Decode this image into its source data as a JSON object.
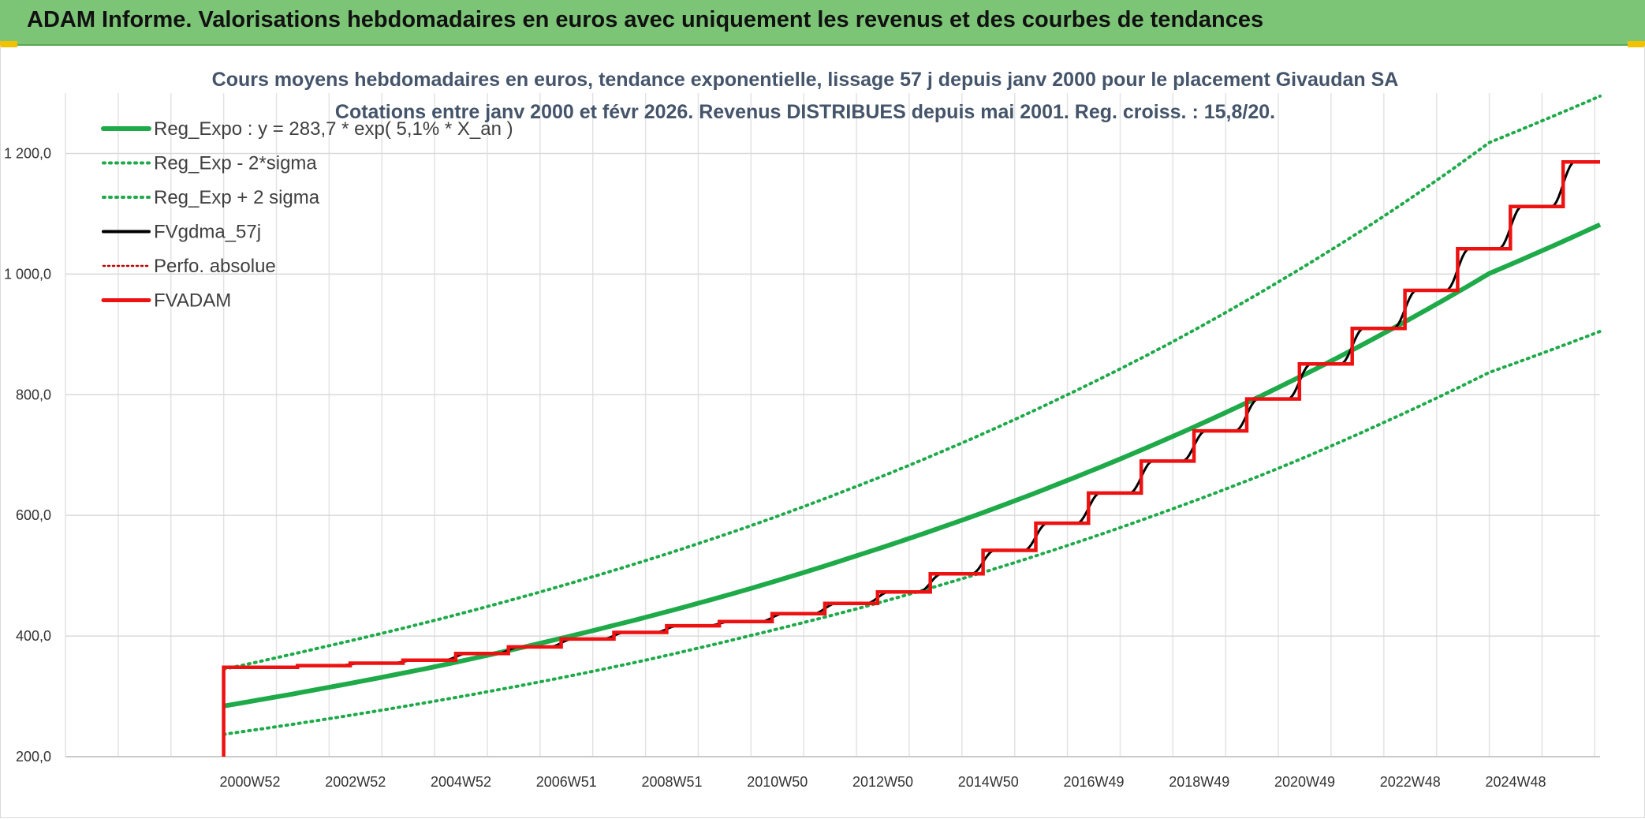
{
  "header": {
    "title": "ADAM Informe. Valorisations hebdomadaires en euros avec uniquement les revenus et des courbes de tendances"
  },
  "colors": {
    "banner": "#7cc576",
    "reg_expo": "#1faa4a",
    "sigma_bands": "#1faa4a",
    "fvgdma": "#000000",
    "perfo": "#c00000",
    "fvadam": "#ee1111"
  },
  "chart_data": {
    "type": "line",
    "title_line1": "Cours moyens hebdomadaires en euros, tendance exponentielle, lissage 57 j depuis janv 2000 pour le placement Givaudan SA",
    "title_line2": "Cotations entre janv 2000 et févr 2026. Revenus DISTRIBUES depuis mai 2001. Reg. croiss. : 15,8/20.",
    "x_tick_labels": [
      "2000W52",
      "2002W52",
      "2004W52",
      "2006W51",
      "2008W51",
      "2010W50",
      "2012W50",
      "2014W50",
      "2016W49",
      "2018W49",
      "2020W49",
      "2022W48",
      "2024W48"
    ],
    "x_range_years": [
      1997,
      2026.1
    ],
    "y_tick_labels": [
      "200,0",
      "400,0",
      "600,0",
      "800,0",
      "1 000,0",
      "1 200,0"
    ],
    "y_ticks": [
      200,
      400,
      600,
      800,
      1000,
      1200
    ],
    "ylim": [
      200,
      1300
    ],
    "grid": true,
    "legend_position": "top-left",
    "legend": [
      {
        "key": "reg_expo",
        "label": "Reg_Expo : y = 283,7 * exp( 5,1% *  X_an )",
        "style": "solid-thick-green"
      },
      {
        "key": "reg_minus",
        "label": "Reg_Exp - 2*sigma",
        "style": "dotted-green"
      },
      {
        "key": "reg_plus",
        "label": "Reg_Exp + 2 sigma",
        "style": "dotted-green"
      },
      {
        "key": "fvgdma",
        "label": "FVgdma_57j",
        "style": "solid-black"
      },
      {
        "key": "perfo",
        "label": "Perfo. absolue",
        "style": "dotted-red"
      },
      {
        "key": "fvadam",
        "label": "FVADAM",
        "style": "solid-thick-red"
      }
    ],
    "series": [
      {
        "key": "reg_expo",
        "x": [
          2000.0,
          2002.0,
          2004.0,
          2006.0,
          2008.0,
          2010.0,
          2012.0,
          2014.0,
          2016.0,
          2018.0,
          2020.0,
          2022.0,
          2024.0,
          2026.1
        ],
        "y": [
          284,
          315,
          349,
          388,
          431,
          479,
          533,
          592,
          658,
          731,
          812,
          902,
          1001,
          1082
        ]
      },
      {
        "key": "reg_minus",
        "x": [
          2000.0,
          2002.0,
          2004.0,
          2006.0,
          2008.0,
          2010.0,
          2012.0,
          2014.0,
          2016.0,
          2018.0,
          2020.0,
          2022.0,
          2024.0,
          2026.1
        ],
        "y": [
          237,
          263,
          292,
          324,
          360,
          401,
          445,
          495,
          550,
          611,
          678,
          754,
          837,
          905
        ]
      },
      {
        "key": "reg_plus",
        "x": [
          2000.0,
          2002.0,
          2004.0,
          2006.0,
          2008.0,
          2010.0,
          2012.0,
          2014.0,
          2016.0,
          2018.0,
          2020.0,
          2022.0,
          2024.0,
          2026.1
        ],
        "y": [
          345,
          384,
          426,
          473,
          525,
          583,
          648,
          720,
          800,
          888,
          987,
          1096,
          1218,
          1295
        ]
      },
      {
        "key": "fvadam",
        "step_x": [
          2000.0,
          2001.4,
          2002.4,
          2003.4,
          2004.4,
          2005.4,
          2006.4,
          2007.4,
          2008.4,
          2009.4,
          2010.4,
          2011.4,
          2012.4,
          2013.4,
          2014.4,
          2015.4,
          2016.4,
          2017.4,
          2018.4,
          2019.4,
          2020.4,
          2021.4,
          2022.4,
          2023.4,
          2024.4,
          2025.4,
          2026.1
        ],
        "step_y": [
          348,
          351,
          355,
          360,
          371,
          382,
          395,
          406,
          417,
          424,
          437,
          454,
          473,
          503,
          542,
          587,
          637,
          690,
          740,
          793,
          851,
          910,
          973,
          1042,
          1112,
          1186,
          1186
        ]
      }
    ]
  }
}
